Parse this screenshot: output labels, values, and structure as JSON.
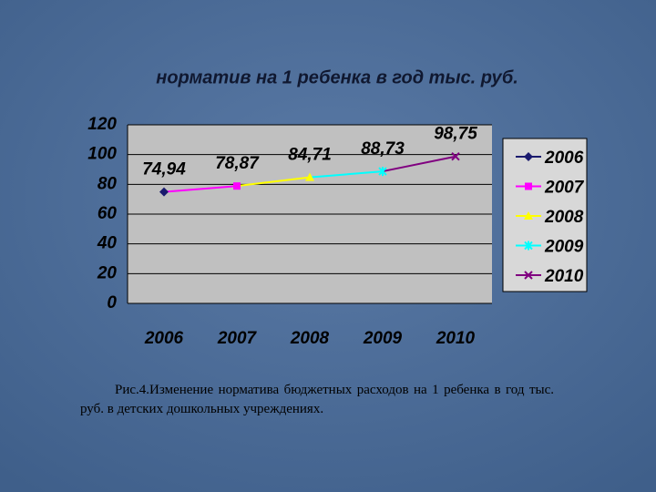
{
  "chart_data": {
    "type": "line",
    "title": "норматив на 1 ребенка в год тыс. руб.",
    "categories": [
      "2006",
      "2007",
      "2008",
      "2009",
      "2010"
    ],
    "values": [
      74.94,
      78.87,
      84.71,
      88.73,
      98.75
    ],
    "value_labels": [
      "74,94",
      "78,87",
      "84,71",
      "88,73",
      "98,75"
    ],
    "point_colors": [
      "#1a1a6e",
      "#ff00ff",
      "#ffff00",
      "#00ffff",
      "#800080"
    ],
    "markers": [
      "diamond",
      "square",
      "triangle",
      "star",
      "x"
    ],
    "ylim": [
      0,
      120
    ],
    "yticks": [
      0,
      20,
      40,
      60,
      80,
      100,
      120
    ],
    "grid": true,
    "legend": "right",
    "caption": "Рис.4.Изменение норматива бюджетных расходов на 1 ребенка в год тыс. руб. в детских дошкольных учреждениях."
  }
}
